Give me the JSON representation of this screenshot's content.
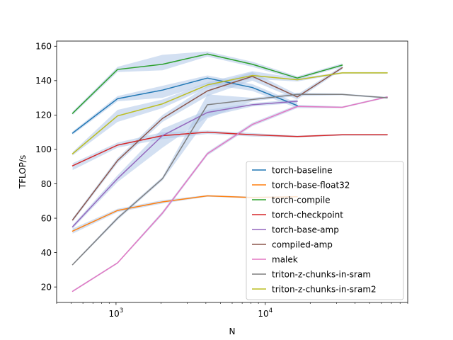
{
  "chart_data": {
    "type": "line",
    "title": "",
    "xlabel": "N",
    "ylabel": "TFLOP/s",
    "xscale": "log",
    "xlim": [
      400,
      90000
    ],
    "ylim": [
      11,
      163
    ],
    "x_major_ticks": [
      1000,
      10000
    ],
    "x_major_tick_labels": [
      {
        "base": "10",
        "exp": "3"
      },
      {
        "base": "10",
        "exp": "4"
      }
    ],
    "yticks": [
      20,
      40,
      60,
      80,
      100,
      120,
      140,
      160
    ],
    "ytick_labels": [
      "20",
      "40",
      "60",
      "80",
      "100",
      "120",
      "140",
      "160"
    ],
    "grid": false,
    "legend_position": "lower-right",
    "band_color": "#aec7e8",
    "series": [
      {
        "name": "torch-baseline",
        "color": "#1f77b4",
        "x": [
          512,
          1024,
          2048,
          4096,
          8192,
          16384
        ],
        "y": [
          109.5,
          129.5,
          134.5,
          141.5,
          136.0,
          125.5
        ],
        "band": [
          [
            108.5,
            110.5
          ],
          [
            128,
            131
          ],
          [
            130,
            137
          ],
          [
            138,
            143
          ],
          [
            134,
            138
          ],
          [
            124,
            127
          ]
        ]
      },
      {
        "name": "torch-base-float32",
        "color": "#ff7f0e",
        "x": [
          512,
          1024,
          2048,
          4096,
          8192,
          16384
        ],
        "y": [
          52.5,
          64.5,
          69.5,
          73.0,
          72.0,
          72.5
        ],
        "band": [
          [
            51,
            54
          ],
          [
            63.5,
            65.5
          ],
          [
            68.5,
            70.5
          ],
          [
            72.5,
            73.5
          ],
          [
            71.5,
            72.5
          ],
          [
            72,
            73
          ]
        ]
      },
      {
        "name": "torch-compile",
        "color": "#2ca02c",
        "x": [
          512,
          1024,
          2048,
          4096,
          8192,
          16384,
          32768
        ],
        "y": [
          121.0,
          146.5,
          149.5,
          155.5,
          149.5,
          141.5,
          149.0
        ],
        "band": [
          [
            120,
            122
          ],
          [
            145,
            148
          ],
          [
            146,
            155
          ],
          [
            154,
            157
          ],
          [
            148,
            151
          ],
          [
            140.5,
            142.5
          ],
          [
            148,
            150
          ]
        ]
      },
      {
        "name": "torch-checkpoint",
        "color": "#d62728",
        "x": [
          512,
          1024,
          2048,
          4096,
          8192,
          16384,
          32768,
          65536
        ],
        "y": [
          90.5,
          102.5,
          108.0,
          110.0,
          108.5,
          107.5,
          108.5,
          108.5
        ],
        "band": [
          [
            88,
            92
          ],
          [
            101,
            104
          ],
          [
            106,
            110
          ],
          [
            109,
            111
          ],
          [
            107.5,
            109.5
          ],
          [
            107,
            108
          ],
          [
            108,
            109
          ],
          [
            108,
            109
          ]
        ]
      },
      {
        "name": "torch-base-amp",
        "color": "#9467bd",
        "x": [
          512,
          1024,
          2048,
          4096,
          8192,
          16384
        ],
        "y": [
          55.0,
          83.0,
          108.0,
          121.5,
          126.0,
          128.0
        ],
        "band": [
          [
            54,
            56
          ],
          [
            81,
            85
          ],
          [
            101,
            112
          ],
          [
            119,
            123
          ],
          [
            125,
            127
          ],
          [
            127,
            129
          ]
        ]
      },
      {
        "name": "compiled-amp",
        "color": "#8c564b",
        "x": [
          512,
          1024,
          2048,
          4096,
          8192,
          16384,
          32768
        ],
        "y": [
          59.0,
          93.5,
          118.0,
          134.0,
          142.5,
          130.5,
          147.5
        ],
        "band": [
          [
            58,
            60
          ],
          [
            92,
            95
          ],
          [
            116,
            120
          ],
          [
            131,
            137
          ],
          [
            140,
            145
          ],
          [
            129,
            132
          ],
          [
            146.5,
            148.5
          ]
        ]
      },
      {
        "name": "malek",
        "color": "#e377c2",
        "x": [
          512,
          1024,
          2048,
          4096,
          8192,
          16384,
          32768,
          65536
        ],
        "y": [
          17.5,
          34.0,
          63.0,
          97.5,
          114.5,
          125.0,
          124.5,
          130.5
        ],
        "band": [
          [
            17,
            18
          ],
          [
            33.5,
            34.5
          ],
          [
            62,
            64
          ],
          [
            96.5,
            98.5
          ],
          [
            113.5,
            115.5
          ],
          [
            124,
            126
          ],
          [
            124,
            125
          ],
          [
            130,
            131
          ]
        ]
      },
      {
        "name": "triton-z-chunks-in-sram",
        "color": "#7f7f7f",
        "x": [
          512,
          1024,
          2048,
          4096,
          8192,
          16384,
          32768,
          65536
        ],
        "y": [
          33.0,
          60.0,
          83.0,
          126.0,
          129.0,
          132.0,
          132.0,
          130.0
        ],
        "band": [
          [
            32.5,
            33.5
          ],
          [
            59,
            61
          ],
          [
            82,
            84
          ],
          [
            118,
            132
          ],
          [
            128,
            130
          ],
          [
            131,
            133
          ],
          [
            131.5,
            132.5
          ],
          [
            129.5,
            130.5
          ]
        ]
      },
      {
        "name": "triton-z-chunks-in-sram2",
        "color": "#bcbd22",
        "x": [
          512,
          1024,
          2048,
          4096,
          8192,
          16384,
          32768,
          65536
        ],
        "y": [
          97.5,
          119.5,
          126.5,
          137.5,
          143.0,
          140.5,
          144.5,
          144.5
        ],
        "band": [
          [
            96.5,
            98.5
          ],
          [
            116,
            123
          ],
          [
            124,
            129
          ],
          [
            136,
            139
          ],
          [
            141,
            145.5
          ],
          [
            139.5,
            141.5
          ],
          [
            144,
            145
          ],
          [
            144,
            145
          ]
        ]
      }
    ]
  }
}
